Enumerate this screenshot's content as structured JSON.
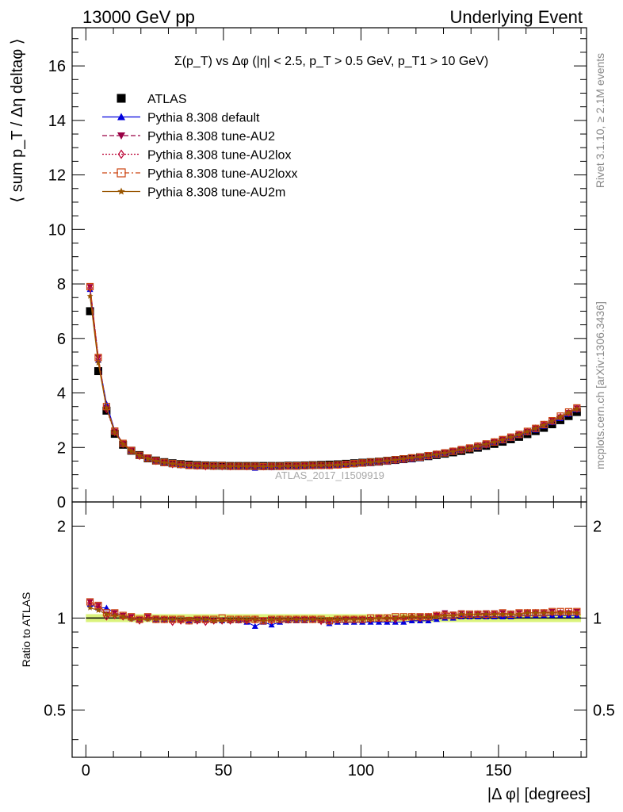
{
  "header": {
    "left": "13000 GeV pp",
    "right": "Underlying Event"
  },
  "main_panel": {
    "title": "Σ(p_T) vs Δφ (|η| < 2.5, p_T > 0.5 GeV, p_T1 > 10 GeV)",
    "ylabel": "⟨ sum p_T / Δη deltaφ ⟩",
    "watermark": "ATLAS_2017_I1509919",
    "yticks": [
      0,
      2,
      4,
      6,
      8,
      10,
      12,
      14,
      16
    ]
  },
  "ratio_panel": {
    "ylabel": "Ratio to ATLAS",
    "yticks": [
      "0.5",
      "1",
      "2"
    ]
  },
  "side_labels": {
    "rivet": "Rivet 3.1.10, ≥ 2.1M events",
    "mcplots": "mcplots.cern.ch [arXiv:1306.3436]"
  },
  "xaxis": {
    "label": "|Δ φ| [degrees]",
    "ticks": [
      "0",
      "50",
      "100",
      "150"
    ]
  },
  "legend": [
    {
      "label": "ATLAS",
      "color": "#000000",
      "marker": "square",
      "line": "none"
    },
    {
      "label": "Pythia 8.308 default",
      "color": "#0000dd",
      "marker": "triangle-up",
      "line": "solid"
    },
    {
      "label": "Pythia 8.308 tune-AU2",
      "color": "#990044",
      "marker": "triangle-down",
      "line": "dashed"
    },
    {
      "label": "Pythia 8.308 tune-AU2lox",
      "color": "#bb0033",
      "marker": "diamond-open",
      "line": "dotted"
    },
    {
      "label": "Pythia 8.308 tune-AU2loxx",
      "color": "#cc4411",
      "marker": "square-open",
      "line": "dashdot"
    },
    {
      "label": "Pythia 8.308 tune-AU2m",
      "color": "#995500",
      "marker": "star",
      "line": "solid"
    }
  ],
  "chart_data": [
    {
      "type": "scatter",
      "panel": "main",
      "title": "Σ(p_T) vs Δφ (|η| < 2.5, p_T > 0.5 GeV, p_T1 > 10 GeV)",
      "xlabel": "|Δ φ| [degrees]",
      "ylabel": "⟨ sum p_T / Δη deltaφ ⟩",
      "xlim": [
        -5,
        182
      ],
      "ylim": [
        0,
        17.4
      ],
      "x_bins": [
        1.5,
        4.5,
        7.5,
        10.5,
        13.5,
        16.5,
        19.5,
        22.5,
        25.5,
        28.5,
        31.5,
        34.5,
        37.5,
        40.5,
        43.5,
        46.5,
        49.5,
        52.5,
        55.5,
        58.5,
        61.5,
        64.5,
        67.5,
        70.5,
        73.5,
        76.5,
        79.5,
        82.5,
        85.5,
        88.5,
        91.5,
        94.5,
        97.5,
        100.5,
        103.5,
        106.5,
        109.5,
        112.5,
        115.5,
        118.5,
        121.5,
        124.5,
        127.5,
        130.5,
        133.5,
        136.5,
        139.5,
        142.5,
        145.5,
        148.5,
        151.5,
        154.5,
        157.5,
        160.5,
        163.5,
        166.5,
        169.5,
        172.5,
        175.5,
        178.5
      ],
      "series": [
        {
          "name": "ATLAS",
          "values": [
            7.0,
            4.8,
            3.35,
            2.5,
            2.1,
            1.88,
            1.72,
            1.6,
            1.52,
            1.46,
            1.42,
            1.39,
            1.37,
            1.35,
            1.34,
            1.33,
            1.33,
            1.32,
            1.32,
            1.32,
            1.32,
            1.32,
            1.32,
            1.32,
            1.33,
            1.33,
            1.34,
            1.35,
            1.36,
            1.37,
            1.38,
            1.4,
            1.42,
            1.44,
            1.46,
            1.48,
            1.51,
            1.54,
            1.57,
            1.6,
            1.64,
            1.68,
            1.72,
            1.77,
            1.82,
            1.87,
            1.93,
            1.99,
            2.06,
            2.13,
            2.21,
            2.3,
            2.39,
            2.49,
            2.6,
            2.72,
            2.85,
            3.0,
            3.15,
            3.3
          ]
        },
        {
          "name": "Pythia 8.308 default",
          "values": [
            7.8,
            5.2,
            3.6,
            2.6,
            2.15,
            1.88,
            1.7,
            1.6,
            1.5,
            1.44,
            1.4,
            1.37,
            1.34,
            1.32,
            1.32,
            1.3,
            1.31,
            1.29,
            1.29,
            1.28,
            1.24,
            1.28,
            1.26,
            1.28,
            1.3,
            1.3,
            1.31,
            1.33,
            1.33,
            1.32,
            1.34,
            1.36,
            1.38,
            1.4,
            1.41,
            1.44,
            1.46,
            1.5,
            1.53,
            1.56,
            1.6,
            1.65,
            1.7,
            1.77,
            1.82,
            1.88,
            1.94,
            2.0,
            2.08,
            2.16,
            2.24,
            2.33,
            2.43,
            2.54,
            2.64,
            2.78,
            2.92,
            3.06,
            3.22,
            3.38
          ]
        },
        {
          "name": "Pythia 8.308 tune-AU2",
          "values": [
            7.9,
            5.3,
            3.45,
            2.6,
            2.15,
            1.9,
            1.7,
            1.62,
            1.52,
            1.44,
            1.4,
            1.36,
            1.35,
            1.34,
            1.32,
            1.31,
            1.31,
            1.3,
            1.3,
            1.3,
            1.3,
            1.3,
            1.31,
            1.3,
            1.31,
            1.32,
            1.33,
            1.33,
            1.32,
            1.33,
            1.35,
            1.38,
            1.41,
            1.43,
            1.45,
            1.48,
            1.5,
            1.54,
            1.56,
            1.6,
            1.66,
            1.7,
            1.75,
            1.84,
            1.87,
            1.94,
            1.98,
            2.05,
            2.14,
            2.22,
            2.3,
            2.38,
            2.48,
            2.59,
            2.71,
            2.84,
            3.0,
            3.12,
            3.28,
            3.45
          ]
        },
        {
          "name": "Pythia 8.308 tune-AU2lox",
          "values": [
            7.85,
            5.25,
            3.4,
            2.55,
            2.12,
            1.88,
            1.68,
            1.6,
            1.5,
            1.45,
            1.38,
            1.36,
            1.34,
            1.32,
            1.3,
            1.31,
            1.3,
            1.3,
            1.31,
            1.3,
            1.31,
            1.3,
            1.3,
            1.31,
            1.32,
            1.32,
            1.33,
            1.33,
            1.34,
            1.34,
            1.36,
            1.38,
            1.4,
            1.43,
            1.45,
            1.48,
            1.51,
            1.53,
            1.57,
            1.61,
            1.64,
            1.69,
            1.75,
            1.8,
            1.86,
            1.9,
            1.96,
            2.05,
            2.1,
            2.2,
            2.28,
            2.37,
            2.47,
            2.58,
            2.7,
            2.84,
            2.96,
            3.12,
            3.27,
            3.42
          ]
        },
        {
          "name": "Pythia 8.308 tune-AU2loxx",
          "values": [
            7.9,
            5.3,
            3.5,
            2.6,
            2.15,
            1.89,
            1.71,
            1.61,
            1.51,
            1.45,
            1.41,
            1.38,
            1.34,
            1.33,
            1.33,
            1.32,
            1.33,
            1.31,
            1.31,
            1.31,
            1.31,
            1.3,
            1.31,
            1.31,
            1.32,
            1.32,
            1.33,
            1.34,
            1.34,
            1.34,
            1.36,
            1.38,
            1.41,
            1.43,
            1.46,
            1.48,
            1.51,
            1.55,
            1.58,
            1.62,
            1.65,
            1.7,
            1.75,
            1.8,
            1.86,
            1.92,
            1.98,
            2.05,
            2.13,
            2.2,
            2.29,
            2.38,
            2.48,
            2.59,
            2.7,
            2.84,
            2.98,
            3.15,
            3.3,
            3.45
          ]
        },
        {
          "name": "Pythia 8.308 tune-AU2m",
          "values": [
            7.55,
            5.1,
            3.45,
            2.55,
            2.12,
            1.87,
            1.7,
            1.59,
            1.5,
            1.44,
            1.4,
            1.37,
            1.35,
            1.33,
            1.32,
            1.31,
            1.31,
            1.31,
            1.31,
            1.31,
            1.31,
            1.3,
            1.31,
            1.31,
            1.32,
            1.32,
            1.33,
            1.34,
            1.34,
            1.35,
            1.36,
            1.38,
            1.4,
            1.43,
            1.45,
            1.48,
            1.51,
            1.54,
            1.58,
            1.62,
            1.65,
            1.7,
            1.74,
            1.8,
            1.85,
            1.92,
            1.98,
            2.05,
            2.12,
            2.2,
            2.28,
            2.38,
            2.47,
            2.58,
            2.7,
            2.82,
            2.97,
            3.12,
            3.28,
            3.42
          ]
        }
      ]
    },
    {
      "type": "scatter",
      "panel": "ratio",
      "ylabel": "Ratio to ATLAS",
      "yscale": "log",
      "xlim": [
        -5,
        182
      ],
      "ylim": [
        0.35,
        2.4
      ],
      "band": {
        "low": 0.97,
        "high": 1.03,
        "color": "#ccee44"
      },
      "x_bins": [
        1.5,
        4.5,
        7.5,
        10.5,
        13.5,
        16.5,
        19.5,
        22.5,
        25.5,
        28.5,
        31.5,
        34.5,
        37.5,
        40.5,
        43.5,
        46.5,
        49.5,
        52.5,
        55.5,
        58.5,
        61.5,
        64.5,
        67.5,
        70.5,
        73.5,
        76.5,
        79.5,
        82.5,
        85.5,
        88.5,
        91.5,
        94.5,
        97.5,
        100.5,
        103.5,
        106.5,
        109.5,
        112.5,
        115.5,
        118.5,
        121.5,
        124.5,
        127.5,
        130.5,
        133.5,
        136.5,
        139.5,
        142.5,
        145.5,
        148.5,
        151.5,
        154.5,
        157.5,
        160.5,
        163.5,
        166.5,
        169.5,
        172.5,
        175.5,
        178.5
      ],
      "series": [
        {
          "name": "Pythia 8.308 default",
          "values": [
            1.11,
            1.08,
            1.08,
            1.04,
            1.02,
            1.0,
            0.99,
            1.0,
            0.99,
            0.99,
            0.99,
            0.99,
            0.98,
            0.98,
            0.99,
            0.98,
            0.98,
            0.98,
            0.98,
            0.97,
            0.94,
            0.97,
            0.95,
            0.97,
            0.98,
            0.98,
            0.98,
            0.99,
            0.98,
            0.96,
            0.97,
            0.97,
            0.97,
            0.97,
            0.97,
            0.97,
            0.97,
            0.97,
            0.97,
            0.98,
            0.98,
            0.98,
            0.99,
            1.0,
            1.0,
            1.01,
            1.01,
            1.01,
            1.01,
            1.01,
            1.01,
            1.01,
            1.02,
            1.02,
            1.02,
            1.02,
            1.02,
            1.02,
            1.02,
            1.02
          ]
        },
        {
          "name": "Pythia 8.308 tune-AU2",
          "values": [
            1.13,
            1.1,
            1.03,
            1.04,
            1.02,
            1.01,
            0.99,
            1.01,
            1.0,
            0.99,
            0.99,
            0.98,
            0.99,
            0.99,
            0.99,
            0.98,
            0.98,
            0.98,
            0.98,
            0.98,
            0.98,
            0.98,
            0.99,
            0.98,
            0.98,
            0.99,
            0.99,
            0.99,
            0.97,
            0.97,
            0.98,
            0.99,
            0.99,
            0.99,
            0.99,
            1.0,
            0.99,
            1.0,
            0.99,
            1.0,
            1.01,
            1.01,
            1.02,
            1.04,
            1.03,
            1.04,
            1.03,
            1.03,
            1.04,
            1.04,
            1.04,
            1.03,
            1.04,
            1.04,
            1.04,
            1.04,
            1.05,
            1.04,
            1.04,
            1.05
          ]
        },
        {
          "name": "Pythia 8.308 tune-AU2lox",
          "values": [
            1.12,
            1.09,
            1.01,
            1.02,
            1.01,
            1.0,
            0.98,
            1.0,
            0.99,
            0.99,
            0.97,
            0.98,
            0.98,
            0.98,
            0.97,
            0.98,
            0.98,
            0.98,
            0.99,
            0.98,
            0.99,
            0.98,
            0.98,
            0.99,
            0.99,
            0.99,
            0.99,
            0.99,
            0.98,
            0.98,
            0.99,
            0.99,
            0.99,
            0.99,
            0.99,
            1.0,
            1.0,
            0.99,
            1.0,
            1.01,
            1.0,
            1.01,
            1.02,
            1.02,
            1.02,
            1.02,
            1.02,
            1.03,
            1.02,
            1.03,
            1.03,
            1.03,
            1.03,
            1.04,
            1.04,
            1.04,
            1.04,
            1.04,
            1.04,
            1.04
          ]
        },
        {
          "name": "Pythia 8.308 tune-AU2loxx",
          "values": [
            1.13,
            1.1,
            1.04,
            1.04,
            1.02,
            1.01,
            0.99,
            1.01,
            0.99,
            0.99,
            0.99,
            0.99,
            0.98,
            0.99,
            0.99,
            0.99,
            1.0,
            0.99,
            0.99,
            0.99,
            0.99,
            0.98,
            0.99,
            0.99,
            0.99,
            0.99,
            0.99,
            0.99,
            0.99,
            0.98,
            0.99,
            0.99,
            0.99,
            0.99,
            1.0,
            1.0,
            1.0,
            1.01,
            1.01,
            1.01,
            1.01,
            1.01,
            1.02,
            1.02,
            1.02,
            1.03,
            1.03,
            1.03,
            1.03,
            1.03,
            1.04,
            1.03,
            1.04,
            1.04,
            1.04,
            1.04,
            1.05,
            1.05,
            1.05,
            1.05
          ]
        },
        {
          "name": "Pythia 8.308 tune-AU2m",
          "values": [
            1.08,
            1.06,
            1.03,
            1.02,
            1.01,
            0.99,
            0.99,
            0.99,
            0.99,
            0.99,
            0.99,
            0.99,
            0.99,
            0.99,
            0.99,
            0.98,
            0.98,
            0.99,
            0.99,
            0.99,
            0.99,
            0.98,
            0.99,
            0.99,
            0.99,
            0.99,
            0.99,
            0.99,
            0.99,
            0.99,
            0.99,
            0.99,
            0.99,
            0.99,
            0.99,
            1.0,
            1.0,
            1.0,
            1.01,
            1.01,
            1.01,
            1.01,
            1.01,
            1.02,
            1.02,
            1.03,
            1.03,
            1.03,
            1.03,
            1.03,
            1.03,
            1.03,
            1.03,
            1.04,
            1.04,
            1.04,
            1.04,
            1.04,
            1.04,
            1.04
          ]
        }
      ]
    }
  ]
}
